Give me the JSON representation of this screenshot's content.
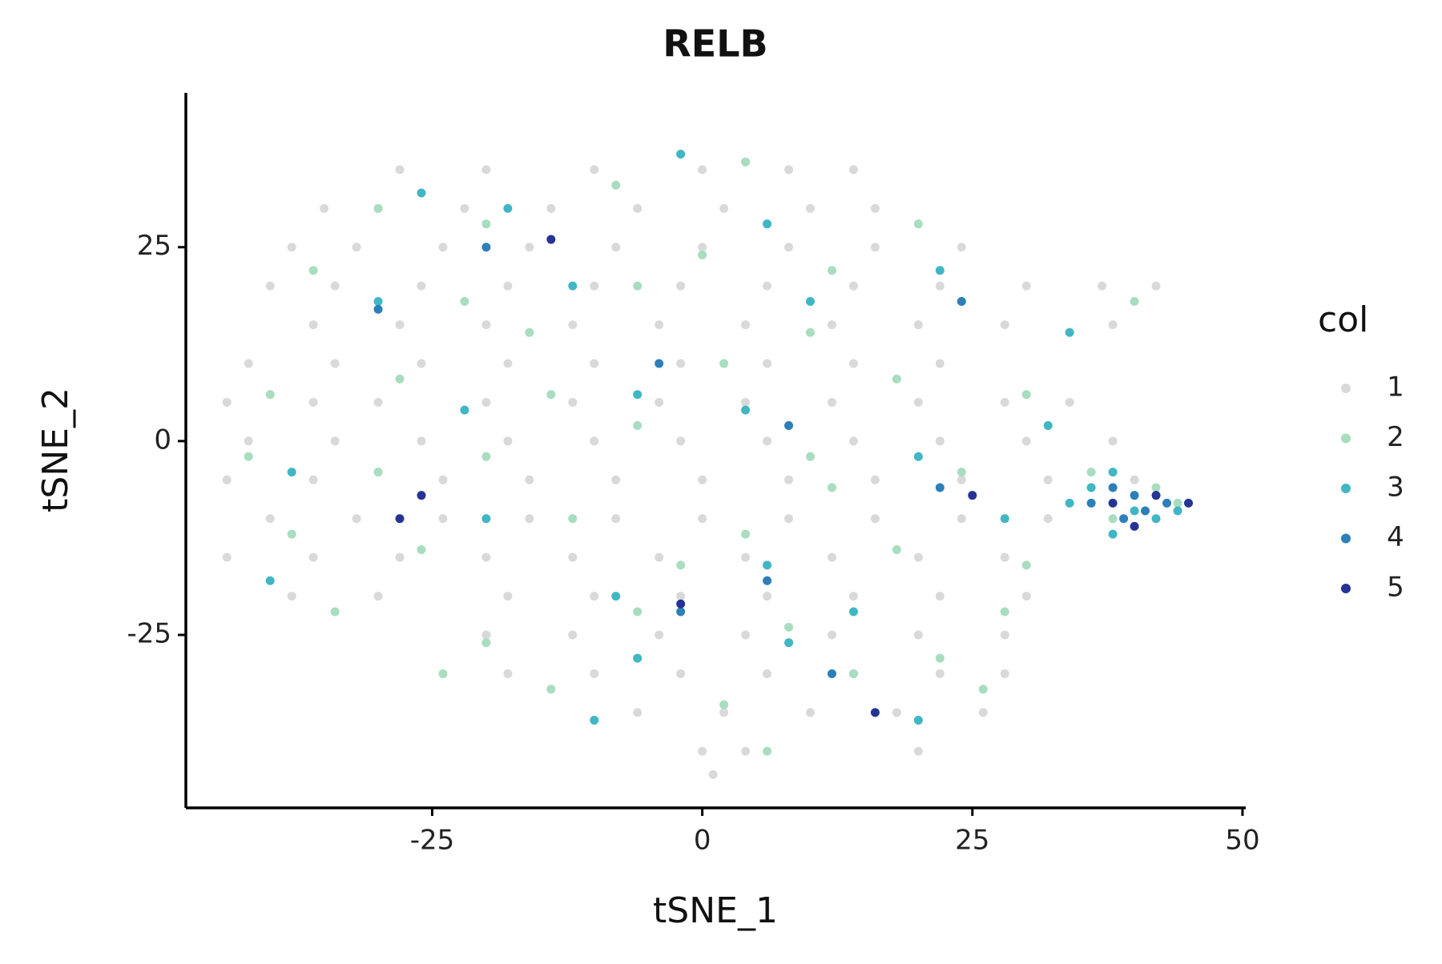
{
  "chart_data": {
    "type": "scatter",
    "title": "RELB",
    "x_label": "tSNE_1",
    "y_label": "tSNE_2",
    "xlim": [
      -47.8,
      50.3
    ],
    "ylim": [
      -47.3,
      44.9
    ],
    "xticks": [
      -25,
      0,
      25,
      50
    ],
    "yticks": [
      -25,
      0,
      25
    ],
    "grid": false,
    "legend_title": "col",
    "legend_position": "right",
    "series": [
      {
        "name": "1",
        "color": "#d9d9d9",
        "x": [
          -28,
          -20,
          -10,
          0,
          8,
          14,
          -35,
          -30,
          -22,
          -14,
          -6,
          2,
          10,
          16,
          -38,
          -32,
          -24,
          -16,
          -8,
          0,
          8,
          16,
          24,
          -40,
          -34,
          -26,
          -18,
          -10,
          -2,
          6,
          14,
          22,
          30,
          37,
          42,
          -36,
          -28,
          -20,
          -12,
          -4,
          4,
          12,
          20,
          28,
          38,
          -42,
          -34,
          -26,
          -18,
          -10,
          -2,
          6,
          14,
          22,
          -44,
          -36,
          -30,
          -20,
          -12,
          -4,
          4,
          12,
          20,
          28,
          34,
          -42,
          -34,
          -26,
          -18,
          -10,
          -2,
          6,
          14,
          22,
          30,
          38,
          -44,
          -36,
          -24,
          -16,
          -8,
          0,
          8,
          16,
          24,
          32,
          40,
          -40,
          -32,
          -24,
          -16,
          -8,
          0,
          8,
          16,
          24,
          32,
          -44,
          -36,
          -28,
          -20,
          -12,
          -4,
          4,
          12,
          20,
          28,
          -38,
          -30,
          -18,
          -10,
          -2,
          6,
          14,
          22,
          30,
          -20,
          -12,
          -4,
          4,
          12,
          20,
          28,
          -18,
          -10,
          -2,
          6,
          14,
          22,
          28,
          -6,
          2,
          10,
          18,
          26,
          0,
          4,
          20,
          1
        ],
        "y": [
          35,
          35,
          35,
          35,
          35,
          35,
          30,
          30,
          30,
          30,
          30,
          30,
          30,
          30,
          25,
          25,
          25,
          25,
          25,
          25,
          25,
          25,
          25,
          20,
          20,
          20,
          20,
          20,
          20,
          20,
          20,
          20,
          20,
          20,
          20,
          15,
          15,
          15,
          15,
          15,
          15,
          15,
          15,
          15,
          15,
          10,
          10,
          10,
          10,
          10,
          10,
          10,
          10,
          10,
          5,
          5,
          5,
          5,
          5,
          5,
          5,
          5,
          5,
          5,
          5,
          0,
          0,
          0,
          0,
          0,
          0,
          0,
          0,
          0,
          0,
          0,
          -5,
          -5,
          -5,
          -5,
          -5,
          -5,
          -5,
          -5,
          -5,
          -5,
          -5,
          -10,
          -10,
          -10,
          -10,
          -10,
          -10,
          -10,
          -10,
          -10,
          -10,
          -15,
          -15,
          -15,
          -15,
          -15,
          -15,
          -15,
          -15,
          -15,
          -15,
          -20,
          -20,
          -20,
          -20,
          -20,
          -20,
          -20,
          -20,
          -20,
          -25,
          -25,
          -25,
          -25,
          -25,
          -25,
          -25,
          -30,
          -30,
          -30,
          -30,
          -30,
          -30,
          -30,
          -35,
          -35,
          -35,
          -35,
          -35,
          -40,
          -40,
          -40,
          -43
        ]
      },
      {
        "name": "2",
        "color": "#a8ddc0",
        "x": [
          -30,
          -20,
          -8,
          4,
          12,
          -36,
          -22,
          -6,
          10,
          24,
          40,
          -40,
          -28,
          -14,
          2,
          18,
          30,
          -42,
          -30,
          -20,
          -6,
          10,
          24,
          36,
          42,
          -38,
          -26,
          -12,
          4,
          18,
          30,
          -34,
          -20,
          -6,
          8,
          22,
          -14,
          2,
          14,
          26,
          6,
          38,
          44,
          -16,
          0,
          20,
          -2,
          12,
          28,
          -24
        ],
        "y": [
          30,
          28,
          33,
          36,
          22,
          22,
          18,
          20,
          14,
          18,
          18,
          6,
          8,
          6,
          10,
          8,
          6,
          -2,
          -4,
          -2,
          2,
          -2,
          -4,
          -4,
          -6,
          -12,
          -14,
          -10,
          -12,
          -14,
          -16,
          -22,
          -26,
          -22,
          -24,
          -28,
          -32,
          -34,
          -30,
          -32,
          -40,
          -10,
          -8,
          14,
          24,
          28,
          -16,
          -6,
          -22,
          -30
        ]
      },
      {
        "name": "3",
        "color": "#41b6c4",
        "x": [
          -26,
          -18,
          -2,
          6,
          -30,
          -12,
          10,
          22,
          34,
          -38,
          -22,
          -6,
          4,
          20,
          32,
          36,
          38,
          40,
          42,
          44,
          -40,
          -20,
          -8,
          6,
          14,
          28,
          -6,
          8,
          20,
          -10,
          38,
          34
        ],
        "y": [
          32,
          30,
          37,
          28,
          18,
          20,
          18,
          22,
          14,
          -4,
          4,
          6,
          4,
          -2,
          2,
          -6,
          -4,
          -9,
          -10,
          -9,
          -18,
          -10,
          -20,
          -16,
          -22,
          -10,
          -28,
          -26,
          -36,
          -36,
          -12,
          -8
        ]
      },
      {
        "name": "4",
        "color": "#2c7fb8",
        "x": [
          -30,
          -4,
          8,
          22,
          36,
          38,
          39,
          40,
          41,
          43,
          -2,
          6,
          24,
          -20,
          12
        ],
        "y": [
          17,
          10,
          2,
          -6,
          -8,
          -6,
          -10,
          -7,
          -9,
          -8,
          -22,
          -18,
          18,
          25,
          -30
        ]
      },
      {
        "name": "5",
        "color": "#253494",
        "x": [
          -14,
          -26,
          -2,
          38,
          40,
          42,
          45,
          25,
          16,
          -28
        ],
        "y": [
          26,
          -7,
          -21,
          -8,
          -11,
          -7,
          -8,
          -7,
          -35,
          -10
        ]
      }
    ]
  }
}
